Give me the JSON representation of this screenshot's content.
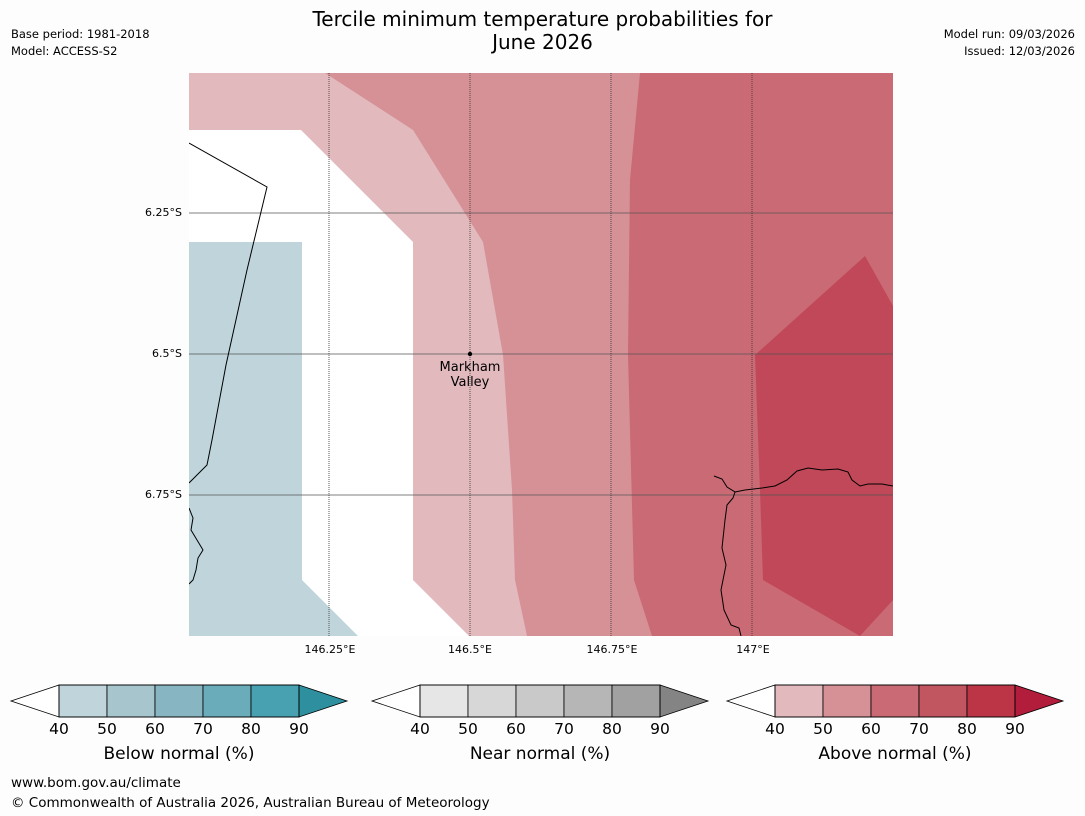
{
  "header": {
    "base_period": "Base period: 1981-2018",
    "model": "Model: ACCESS-S2",
    "title_line1": "Tercile minimum temperature probabilities for",
    "title_line2": "June 2026",
    "model_run": "Model run: 09/03/2026",
    "issued": "Issued: 12/03/2026"
  },
  "map": {
    "latitude_labels": [
      "6.25°S",
      "6.5°S",
      "6.75°S"
    ],
    "longitude_labels": [
      "146.25°E",
      "146.5°E",
      "146.75°E",
      "147°E"
    ],
    "place": {
      "name_line1": "Markham",
      "name_line2": "Valley"
    }
  },
  "colorbars": [
    {
      "title": "Below normal (%)",
      "ticks": [
        "40",
        "50",
        "60",
        "70",
        "80",
        "90"
      ],
      "colors": [
        "#bfd5db",
        "#a6c5cc",
        "#87b5c1",
        "#6aacb9",
        "#47a1b0",
        "#2e8f9f"
      ]
    },
    {
      "title": "Near normal (%)",
      "ticks": [
        "40",
        "50",
        "60",
        "70",
        "80",
        "90"
      ],
      "colors": [
        "#e6e6e6",
        "#d7d7d7",
        "#c9c9c9",
        "#b6b6b6",
        "#a1a1a1",
        "#848484"
      ]
    },
    {
      "title": "Above normal (%)",
      "ticks": [
        "40",
        "50",
        "60",
        "70",
        "80",
        "90"
      ],
      "colors": [
        "#e2babe",
        "#d69197",
        "#c96a74",
        "#c25660",
        "#bb3547",
        "#b11d3a"
      ]
    }
  ],
  "footer": {
    "url": "www.bom.gov.au/climate",
    "copyright": "© Commonwealth of Australia 2026, Australian Bureau of Meteorology"
  }
}
